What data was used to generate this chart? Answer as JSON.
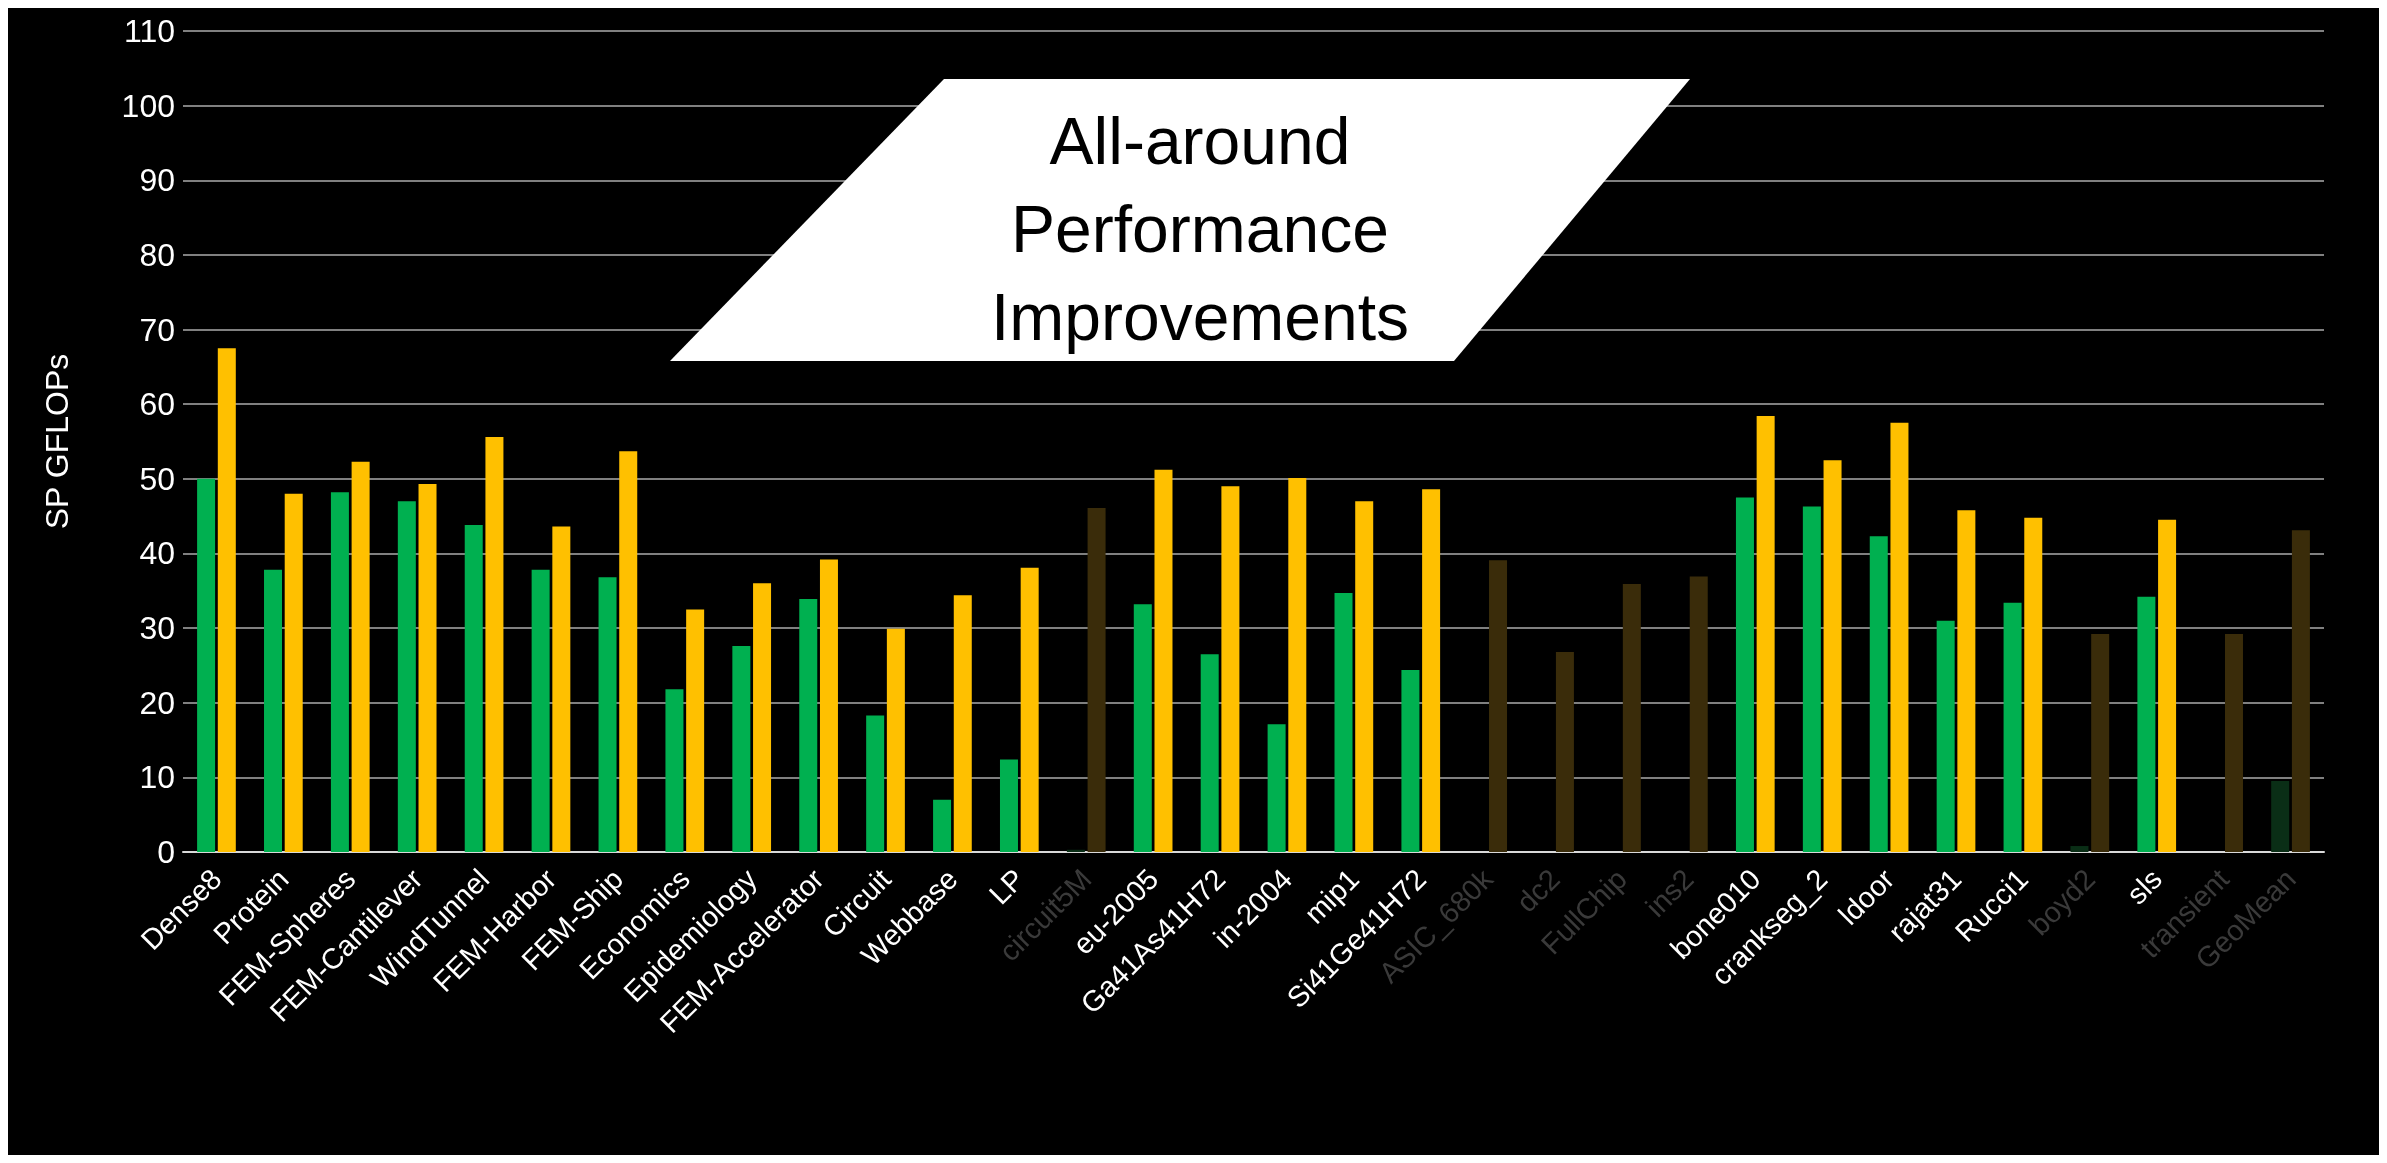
{
  "chart_data": {
    "type": "bar",
    "ylabel": "SP GFLOPs",
    "categories": [
      "Dense8",
      "Protein",
      "FEM-Spheres",
      "FEM-Cantilever",
      "WindTunnel",
      "FEM-Harbor",
      "FEM-Ship",
      "Economics",
      "Epidemiology",
      "FEM-Accelerator",
      "Circuit",
      "Webbase",
      "LP",
      "circuit5M",
      "eu-2005",
      "Ga41As41H72",
      "in-2004",
      "mip1",
      "Si41Ge41H72",
      "ASIC_680k",
      "dc2",
      "FullChip",
      "ins2",
      "bone010",
      "crankseg_2",
      "ldoor",
      "rajat31",
      "Rucci1",
      "boyd2",
      "sls",
      "transient",
      "GeoMean"
    ],
    "series": [
      {
        "color": "#00b050",
        "colors": [
          "#00b050",
          "#00b050",
          "#00b050",
          "#00b050",
          "#00b050",
          "#00b050",
          "#00b050",
          "#00b050",
          "#00b050",
          "#00b050",
          "#00b050",
          "#00b050",
          "#00b050",
          "#0a2e16",
          "#00b050",
          "#00b050",
          "#00b050",
          "#00b050",
          "#00b050",
          "#0a2e16",
          "#0a2e16",
          "#0a2e16",
          "#0a2e16",
          "#00b050",
          "#00b050",
          "#00b050",
          "#00b050",
          "#00b050",
          "#0a2e16",
          "#00b050",
          "#0a2e16",
          "#0a2e16"
        ],
        "values": [
          50,
          37.8,
          48.2,
          47,
          43.8,
          37.8,
          36.8,
          21.8,
          27.6,
          33.9,
          18.3,
          7,
          12.4,
          0.3,
          33.2,
          26.5,
          17.1,
          34.7,
          24.4,
          null,
          null,
          null,
          null,
          47.5,
          46.3,
          42.3,
          31,
          33.4,
          0.8,
          34.2,
          null,
          9.5
        ]
      },
      {
        "color": "#ffc000",
        "colors": [
          "#ffc000",
          "#ffc000",
          "#ffc000",
          "#ffc000",
          "#ffc000",
          "#ffc000",
          "#ffc000",
          "#ffc000",
          "#ffc000",
          "#ffc000",
          "#ffc000",
          "#ffc000",
          "#ffc000",
          "#3a2c0a",
          "#ffc000",
          "#ffc000",
          "#ffc000",
          "#ffc000",
          "#ffc000",
          "#3a2c0a",
          "#3a2c0a",
          "#3a2c0a",
          "#3a2c0a",
          "#ffc000",
          "#ffc000",
          "#ffc000",
          "#ffc000",
          "#ffc000",
          "#3a2c0a",
          "#ffc000",
          "#3a2c0a",
          "#3a2c0a"
        ],
        "values": [
          67.5,
          48,
          52.3,
          49.3,
          55.6,
          43.6,
          53.7,
          32.5,
          36,
          39.2,
          29.9,
          34.4,
          38.1,
          46.1,
          51.2,
          49,
          50.1,
          47,
          48.6,
          39.1,
          26.8,
          35.9,
          36.9,
          58.4,
          52.5,
          57.5,
          45.8,
          44.8,
          29.2,
          44.5,
          29.2,
          43.1
        ]
      }
    ],
    "ylim": [
      0,
      110
    ],
    "yticks": [
      0,
      10,
      20,
      30,
      40,
      50,
      60,
      70,
      80,
      90,
      100,
      110
    ],
    "grid": "y",
    "annotations": [
      "All-around\nPerformance\nImprovements"
    ]
  }
}
